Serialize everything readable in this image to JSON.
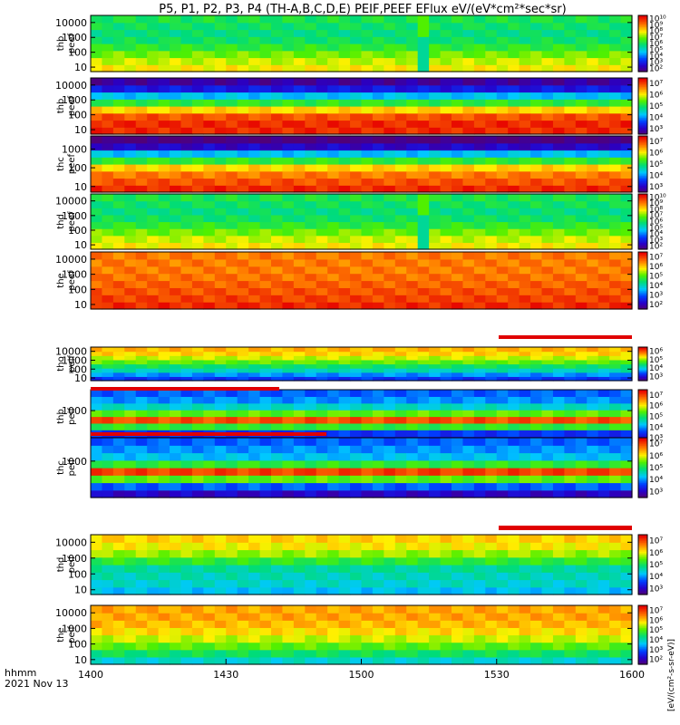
{
  "title": "P5, P1, P2, P3, P4 (TH-A,B,C,D,E) PEIF,PEEF EFlux eV/(eV*cm²*sec*sr)",
  "time_axis": {
    "label_line1": "hhmm",
    "label_line2": "2021 Nov 13",
    "ticks": [
      "1400",
      "1430",
      "1500",
      "1530",
      "1600"
    ]
  },
  "colorbar_label": "[eV/(cm²-s-sr-eV)]",
  "chart_data": {
    "type": "heatmap",
    "x_range": [
      "1400",
      "1600"
    ],
    "y_scale": "log",
    "colormap": "rainbow (purple-blue-green-yellow-red)",
    "panels": [
      {
        "label1": "thb",
        "label2": "peef",
        "yticks": [
          "10",
          "100",
          "1000",
          "10000"
        ],
        "ylim": [
          5,
          30000
        ],
        "cb_ticks": [
          "10²",
          "10³",
          "10⁴",
          "10⁵",
          "10⁶",
          "10⁷",
          "10⁸",
          "10⁹",
          "10¹⁰"
        ],
        "dropout_at": "1524"
      },
      {
        "label1": "thb",
        "label2": "peef",
        "yticks": [
          "10",
          "100",
          "1000",
          "10000"
        ],
        "ylim": [
          5,
          30000
        ],
        "cb_ticks": [
          "10³",
          "10⁴",
          "10⁵",
          "10⁶",
          "10⁷"
        ]
      },
      {
        "label1": "thc",
        "label2": "peef",
        "yticks": [
          "10",
          "100",
          "1000"
        ],
        "ylim": [
          5,
          5000
        ],
        "cb_ticks": [
          "10³",
          "10⁴",
          "10⁵",
          "10⁶",
          "10⁷"
        ]
      },
      {
        "label1": "thd",
        "label2": "peef",
        "yticks": [
          "10",
          "100",
          "1000",
          "10000"
        ],
        "ylim": [
          5,
          30000
        ],
        "cb_ticks": [
          "10²",
          "10³",
          "10⁴",
          "10⁵",
          "10⁶",
          "10⁷",
          "10⁸",
          "10⁹",
          "10¹⁰"
        ],
        "dropout_at": "1523"
      },
      {
        "label1": "the",
        "label2": "peef",
        "yticks": [
          "10",
          "100",
          "1000",
          "10000"
        ],
        "ylim": [
          5,
          30000
        ],
        "cb_ticks": [
          "10²",
          "10³",
          "10⁴",
          "10⁵",
          "10⁶",
          "10⁷"
        ]
      },
      {
        "label1": "tho",
        "label2": "peif",
        "yticks": [
          "10",
          "100",
          "1000",
          "10000"
        ],
        "ylim": [
          5,
          30000
        ],
        "cb_ticks": [
          "10³",
          "10⁴",
          "10⁵",
          "10⁶"
        ]
      },
      {
        "label1": "thb",
        "label2": "peif",
        "yticks": [
          "1000"
        ],
        "ylim": [
          5,
          30000
        ],
        "cb_ticks": [
          "10³",
          "10⁴",
          "10⁵",
          "10⁶",
          "10⁷"
        ]
      },
      {
        "label1": "thc",
        "label2": "peif",
        "yticks": [
          "1000"
        ],
        "ylim": [
          5,
          30000
        ],
        "cb_ticks": [
          "10³",
          "10⁴",
          "10⁵",
          "10⁶",
          "10⁷"
        ]
      },
      {
        "label1": "thd",
        "label2": "peif",
        "yticks": [
          "10",
          "100",
          "1000",
          "10000"
        ],
        "ylim": [
          5,
          30000
        ],
        "cb_ticks": [
          "10³",
          "10⁴",
          "10⁵",
          "10⁶",
          "10⁷"
        ]
      },
      {
        "label1": "the",
        "label2": "peif",
        "yticks": [
          "10",
          "100",
          "1000",
          "10000"
        ],
        "ylim": [
          5,
          30000
        ],
        "cb_ticks": [
          "10²",
          "10³",
          "10⁴",
          "10⁵",
          "10⁶",
          "10⁷"
        ]
      }
    ]
  }
}
